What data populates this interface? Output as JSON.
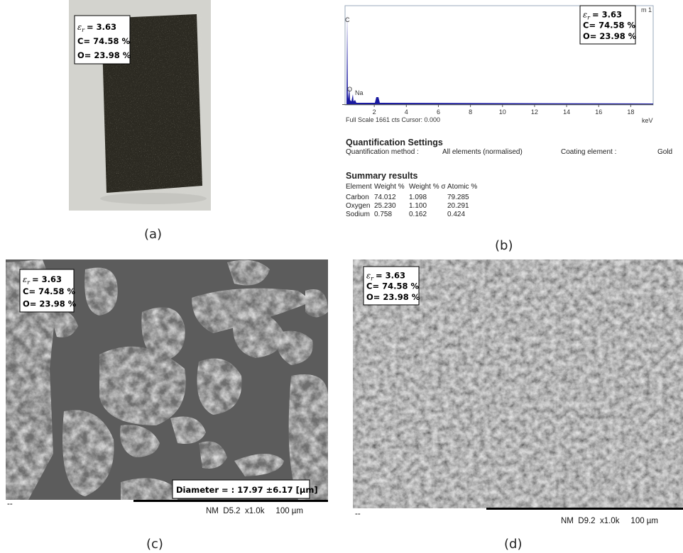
{
  "annotation": {
    "symbol": "ε",
    "subscript": "r",
    "permittivity": "= 3.63",
    "carbon": "C= 74.58 %",
    "oxygen": "O= 23.98 %"
  },
  "panels": {
    "a": {
      "label": "(a)"
    },
    "b": {
      "label": "(b)",
      "spectrum": {
        "peaks": [
          "C",
          "O",
          "Na"
        ],
        "corner_text": "m 1",
        "xlim": [
          0,
          19.4
        ],
        "xticks": [
          2,
          4,
          6,
          8,
          10,
          12,
          14,
          16,
          18
        ],
        "x_unit": "keV",
        "footer": "Full Scale 1661 cts Cursor: 0.000"
      },
      "settings": {
        "title": "Quantification Settings",
        "method_label": "Quantification method :",
        "method": "All elements (normalised)",
        "coating_label": "Coating element :",
        "coating": "Gold"
      },
      "summary": {
        "title": "Summary results",
        "header": [
          "Element",
          "Weight %",
          "Weight % σ",
          "Atomic %"
        ],
        "rows": [
          [
            "Carbon",
            "74.012",
            "1.098",
            "79.285"
          ],
          [
            "Oxygen",
            "25.230",
            "1.100",
            "20.291"
          ],
          [
            "Sodium",
            "0.758",
            "0.162",
            "0.424"
          ]
        ]
      }
    },
    "c": {
      "label": "(c)",
      "diameter": "Diameter = : 17.97 ±6.17 [µm]",
      "marker": "--",
      "info": "NM  D5.2  x1.0k     100 µm"
    },
    "d": {
      "label": "(d)",
      "marker": "--",
      "info": "NM  D9.2  x1.0k     100 µm"
    }
  }
}
